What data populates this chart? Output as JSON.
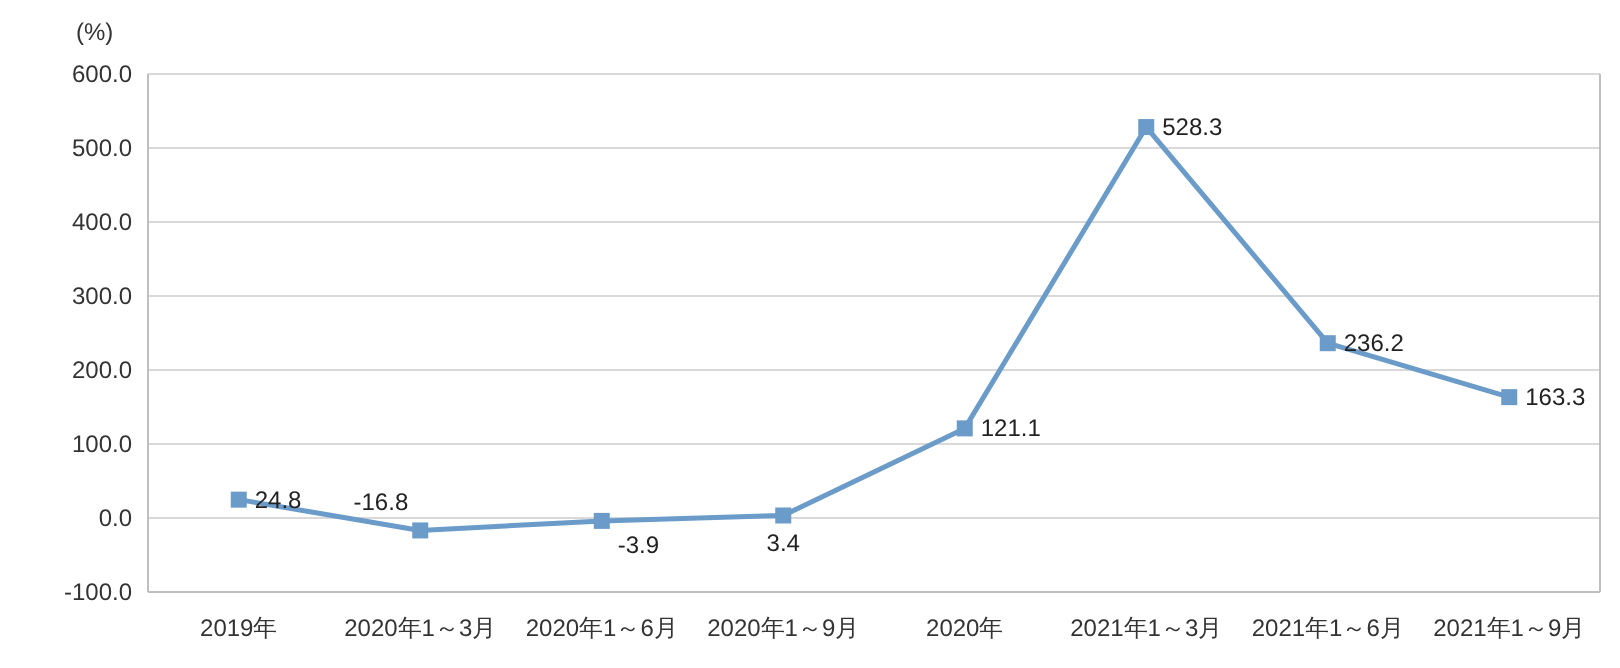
{
  "chart_data": {
    "type": "line",
    "ylabel": "(%)",
    "categories": [
      "2019年",
      "2020年1～3月",
      "2020年1～6月",
      "2020年1～9月",
      "2020年",
      "2021年1～3月",
      "2021年1～6月",
      "2021年1～9月"
    ],
    "series": [
      {
        "color": "#6b9bc9",
        "values": [
          24.8,
          -16.8,
          -3.9,
          3.4,
          121.1,
          528.3,
          236.2,
          163.3
        ]
      }
    ],
    "ylim": [
      -100,
      600
    ],
    "yticks": [
      {
        "value": -100,
        "label": "-100.0"
      },
      {
        "value": 0,
        "label": "0.0"
      },
      {
        "value": 100,
        "label": "100.0"
      },
      {
        "value": 200,
        "label": "200.0"
      },
      {
        "value": 300,
        "label": "300.0"
      },
      {
        "value": 400,
        "label": "400.0"
      },
      {
        "value": 500,
        "label": "500.0"
      },
      {
        "value": 600,
        "label": "600.0"
      }
    ],
    "grid": "y",
    "marker": "square",
    "line_style": "solid",
    "data_labels": true
  }
}
